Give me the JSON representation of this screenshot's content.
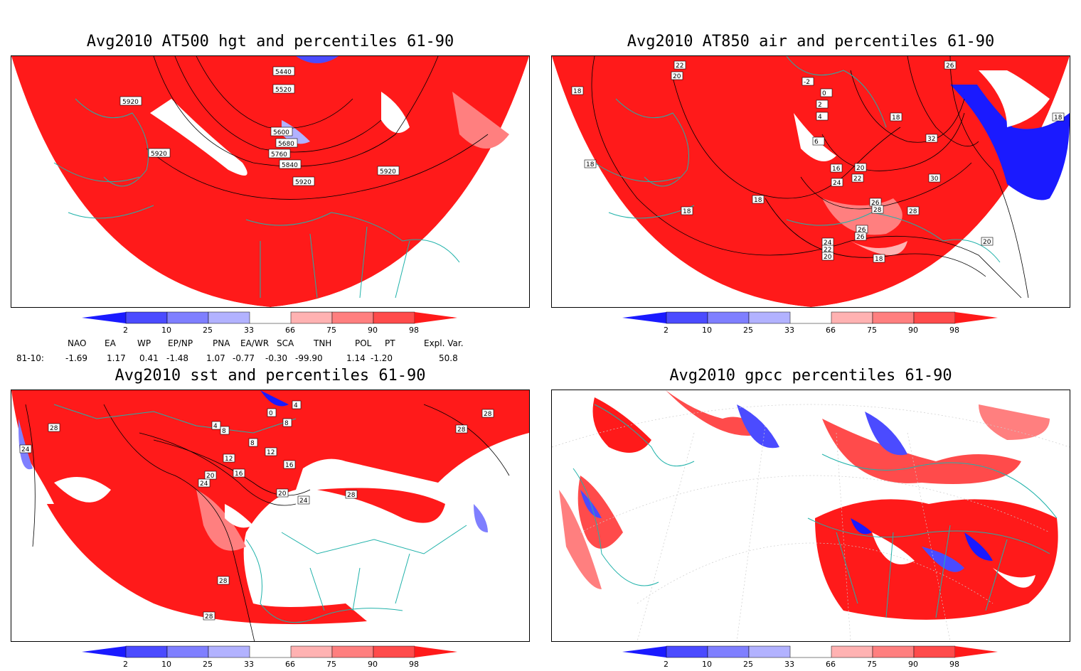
{
  "panels": [
    {
      "id": "p1",
      "title": "Avg2010 AT500 hgt and percentiles 61-90",
      "contour_labels": [
        "5440",
        "5520",
        "5920",
        "5920",
        "5600",
        "5680",
        "5760",
        "5840",
        "5920",
        "5920"
      ]
    },
    {
      "id": "p2",
      "title": "Avg2010 AT850 air and percentiles 61-90",
      "contour_labels": [
        "22",
        "20",
        "18",
        "18",
        "18",
        "18",
        "-2",
        "0",
        "2",
        "4",
        "6",
        "16",
        "22",
        "24",
        "20",
        "18",
        "26",
        "26",
        "28",
        "28",
        "32",
        "30",
        "26",
        "26",
        "24",
        "22",
        "20",
        "18",
        "18",
        "20"
      ]
    },
    {
      "id": "p3",
      "title": "Avg2010 sst and percentiles 61-90",
      "contour_labels": [
        "28",
        "24",
        "4",
        "8",
        "0",
        "4",
        "8",
        "12",
        "8",
        "12",
        "16",
        "20",
        "24",
        "16",
        "20",
        "24",
        "28",
        "28",
        "28",
        "28",
        "28"
      ]
    },
    {
      "id": "p4",
      "title": "Avg2010 gpcc percentiles 61-90",
      "contour_labels": []
    }
  ],
  "colorbar": {
    "labels": [
      "2",
      "10",
      "25",
      "33",
      "66",
      "75",
      "90",
      "98"
    ],
    "colors": {
      "deep_blue": "#1a1aff",
      "blue": "#4b4bff",
      "mid_blue": "#7f7fff",
      "light_blue": "#b2b2ff",
      "light_red": "#ffb2b2",
      "mid_red": "#ff7f7f",
      "red": "#ff4b4b",
      "deep_red": "#ff1a1a"
    }
  },
  "indices": {
    "headers": [
      "NAO",
      "EA",
      "WP",
      "EP/NP",
      "PNA",
      "EA/WR",
      "SCA",
      "TNH",
      "POL",
      "PT",
      "Expl. Var."
    ],
    "row_label": "81-10:",
    "values": [
      "-1.69",
      "1.17",
      "0.41",
      "-1.48",
      "1.07",
      "-0.77",
      "-0.30",
      "-99.90",
      "1.14",
      "-1.20",
      "50.8"
    ]
  },
  "map_colors": {
    "land_outline": "#20b2aa",
    "contour": "#000000",
    "field_red": "#ff0000",
    "field_white": "#ffffff"
  }
}
